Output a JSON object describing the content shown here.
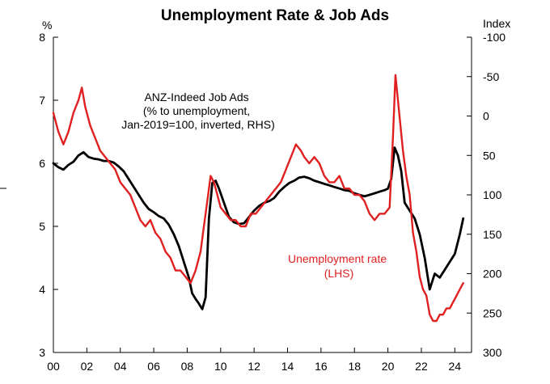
{
  "chart_data": {
    "type": "line",
    "title": "Unemployment Rate & Job Ads",
    "left_axis": {
      "unit_label": "%",
      "range": [
        3,
        8
      ],
      "ticks": [
        "3",
        "4",
        "5",
        "6",
        "7",
        "8"
      ]
    },
    "right_axis": {
      "unit_label": "Index",
      "range": [
        -100,
        300
      ],
      "inverted": true,
      "ticks": [
        "-100",
        "-50",
        "0",
        "50",
        "100",
        "150",
        "200",
        "250",
        "300"
      ]
    },
    "x_axis": {
      "range": [
        2000,
        2025
      ],
      "ticks": [
        "00",
        "02",
        "04",
        "06",
        "08",
        "10",
        "12",
        "14",
        "16",
        "18",
        "20",
        "22",
        "24"
      ]
    },
    "grid": false,
    "series": [
      {
        "name": "Unemployment rate (LHS)",
        "label_lines": [
          "Unemployment rate",
          "(LHS)"
        ],
        "axis": "left",
        "color": "#e02020",
        "x": [
          2000.0,
          2000.3,
          2000.6,
          2000.9,
          2001.2,
          2001.5,
          2001.7,
          2001.9,
          2002.2,
          2002.5,
          2002.8,
          2003.1,
          2003.4,
          2003.7,
          2004.0,
          2004.3,
          2004.6,
          2004.9,
          2005.2,
          2005.5,
          2005.8,
          2006.1,
          2006.4,
          2006.7,
          2007.0,
          2007.3,
          2007.6,
          2007.9,
          2008.2,
          2008.5,
          2008.8,
          2009.0,
          2009.2,
          2009.4,
          2009.6,
          2009.8,
          2010.0,
          2010.3,
          2010.6,
          2010.9,
          2011.2,
          2011.5,
          2011.8,
          2012.1,
          2012.4,
          2012.7,
          2013.0,
          2013.3,
          2013.6,
          2013.9,
          2014.2,
          2014.5,
          2014.8,
          2015.0,
          2015.3,
          2015.6,
          2015.9,
          2016.2,
          2016.5,
          2016.8,
          2017.1,
          2017.4,
          2017.7,
          2018.0,
          2018.3,
          2018.6,
          2018.9,
          2019.2,
          2019.5,
          2019.8,
          2020.1,
          2020.3,
          2020.45,
          2020.6,
          2020.75,
          2020.9,
          2021.1,
          2021.3,
          2021.5,
          2021.7,
          2021.9,
          2022.1,
          2022.3,
          2022.5,
          2022.7,
          2022.9,
          2023.1,
          2023.3,
          2023.5,
          2023.7,
          2023.9,
          2024.1,
          2024.3,
          2024.5
        ],
        "values": [
          6.8,
          6.5,
          6.3,
          6.5,
          6.8,
          7.0,
          7.2,
          6.9,
          6.6,
          6.4,
          6.2,
          6.1,
          6.0,
          5.9,
          5.7,
          5.6,
          5.5,
          5.3,
          5.1,
          5.0,
          5.1,
          4.9,
          4.8,
          4.6,
          4.5,
          4.3,
          4.3,
          4.2,
          4.1,
          4.3,
          4.6,
          5.0,
          5.4,
          5.8,
          5.7,
          5.5,
          5.3,
          5.2,
          5.1,
          5.1,
          5.0,
          5.0,
          5.2,
          5.2,
          5.3,
          5.4,
          5.5,
          5.6,
          5.7,
          5.9,
          6.1,
          6.3,
          6.2,
          6.1,
          6.0,
          6.1,
          6.0,
          5.8,
          5.7,
          5.7,
          5.8,
          5.6,
          5.6,
          5.5,
          5.5,
          5.4,
          5.2,
          5.1,
          5.2,
          5.2,
          5.3,
          6.4,
          7.4,
          7.0,
          6.6,
          6.2,
          5.8,
          5.5,
          4.9,
          4.6,
          4.2,
          4.0,
          3.9,
          3.6,
          3.5,
          3.5,
          3.6,
          3.6,
          3.7,
          3.7,
          3.8,
          3.9,
          4.0,
          4.1
        ]
      },
      {
        "name": "ANZ-Indeed Job Ads (% to unemployment, Jan-2019=100, inverted, RHS)",
        "label_lines": [
          "ANZ-Indeed  Job  Ads",
          "(% to unemployment,",
          "Jan-2019=100,  inverted,  RHS)"
        ],
        "axis": "right",
        "color": "#000000",
        "x": [
          2000.0,
          2000.3,
          2000.6,
          2000.9,
          2001.2,
          2001.5,
          2001.8,
          2002.1,
          2002.4,
          2002.7,
          2003.0,
          2003.3,
          2003.6,
          2003.9,
          2004.2,
          2004.5,
          2004.8,
          2005.1,
          2005.4,
          2005.7,
          2006.0,
          2006.3,
          2006.6,
          2006.9,
          2007.2,
          2007.5,
          2007.8,
          2008.1,
          2008.3,
          2008.5,
          2008.7,
          2008.9,
          2009.1,
          2009.3,
          2009.5,
          2009.7,
          2009.9,
          2010.2,
          2010.5,
          2010.8,
          2011.1,
          2011.4,
          2011.7,
          2012.0,
          2012.3,
          2012.6,
          2012.9,
          2013.2,
          2013.5,
          2013.8,
          2014.1,
          2014.4,
          2014.7,
          2015.0,
          2015.3,
          2015.6,
          2015.9,
          2016.2,
          2016.5,
          2016.8,
          2017.1,
          2017.4,
          2017.7,
          2018.0,
          2018.3,
          2018.6,
          2018.9,
          2019.2,
          2019.5,
          2019.8,
          2020.0,
          2020.2,
          2020.4,
          2020.6,
          2020.8,
          2021.0,
          2021.3,
          2021.6,
          2021.9,
          2022.2,
          2022.5,
          2022.8,
          2023.1,
          2023.4,
          2023.7,
          2024.0,
          2024.3,
          2024.5
        ],
        "values": [
          60,
          65,
          68,
          62,
          58,
          50,
          46,
          52,
          54,
          55,
          57,
          57,
          59,
          64,
          70,
          80,
          90,
          100,
          110,
          118,
          122,
          127,
          130,
          138,
          150,
          165,
          185,
          205,
          225,
          232,
          238,
          245,
          230,
          130,
          85,
          82,
          92,
          110,
          128,
          135,
          137,
          136,
          128,
          120,
          114,
          110,
          108,
          104,
          96,
          90,
          85,
          82,
          78,
          77,
          79,
          82,
          84,
          86,
          88,
          90,
          92,
          94,
          95,
          98,
          100,
          102,
          100,
          98,
          96,
          94,
          92,
          80,
          40,
          50,
          70,
          110,
          120,
          130,
          150,
          180,
          220,
          200,
          205,
          195,
          185,
          175,
          150,
          130
        ]
      }
    ]
  }
}
